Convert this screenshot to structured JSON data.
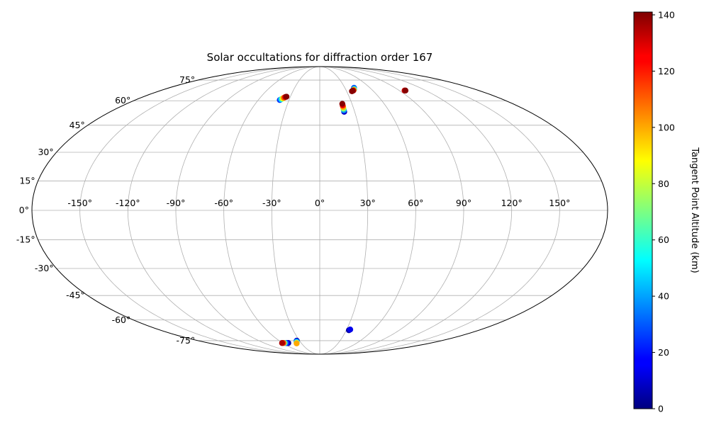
{
  "chart_data": {
    "type": "scatter",
    "projection": "mollweide",
    "title": "Solar occultations for diffraction order 167",
    "lon_ticks": [
      -150,
      -120,
      -90,
      -60,
      -30,
      0,
      30,
      60,
      90,
      120,
      150
    ],
    "lat_ticks": [
      -75,
      -60,
      -45,
      -30,
      -15,
      0,
      15,
      30,
      45,
      60,
      75
    ],
    "lon_tick_labels": [
      "-150°",
      "-120°",
      "-90°",
      "-60°",
      "-30°",
      "0°",
      "30°",
      "60°",
      "90°",
      "120°",
      "150°"
    ],
    "lat_tick_labels": [
      "-75°",
      "-60°",
      "-45°",
      "-30°",
      "-15°",
      "0°",
      "15°",
      "30°",
      "45°",
      "60°",
      "75°"
    ],
    "grid": true,
    "colormap": "jet",
    "colorbar": {
      "label": "Tangent Point Altitude (km)",
      "min": 0,
      "max": 141,
      "ticks": [
        0,
        20,
        40,
        60,
        80,
        100,
        120,
        140
      ],
      "tick_labels": [
        "0",
        "20",
        "40",
        "60",
        "80",
        "100",
        "120",
        "140"
      ],
      "placement": "right"
    },
    "points": [
      {
        "lon": -39,
        "lat": 60.5,
        "alt": 25
      },
      {
        "lon": -38,
        "lat": 61,
        "alt": 50
      },
      {
        "lon": -37,
        "lat": 61.5,
        "alt": 85
      },
      {
        "lon": -36,
        "lat": 62,
        "alt": 110
      },
      {
        "lon": -35,
        "lat": 62.5,
        "alt": 130
      },
      {
        "lon": -34,
        "lat": 62.7,
        "alt": 140
      },
      {
        "lon": 21,
        "lat": 53,
        "alt": 10
      },
      {
        "lon": 21,
        "lat": 54,
        "alt": 40
      },
      {
        "lon": 21,
        "lat": 55,
        "alt": 75
      },
      {
        "lon": 21,
        "lat": 56,
        "alt": 100
      },
      {
        "lon": 21,
        "lat": 57,
        "alt": 125
      },
      {
        "lon": 21,
        "lat": 58,
        "alt": 140
      },
      {
        "lon": 41,
        "lat": 69,
        "alt": 30
      },
      {
        "lon": 40,
        "lat": 68,
        "alt": 60
      },
      {
        "lon": 39,
        "lat": 67.5,
        "alt": 100
      },
      {
        "lon": 38,
        "lat": 67,
        "alt": 130
      },
      {
        "lon": 37,
        "lat": 66.8,
        "alt": 140
      },
      {
        "lon": 36,
        "lat": 66.5,
        "alt": 140
      },
      {
        "lon": 96,
        "lat": 67,
        "alt": 130
      },
      {
        "lon": 97,
        "lat": 67,
        "alt": 140
      },
      {
        "lon": 33,
        "lat": -67,
        "alt": 5
      },
      {
        "lon": 34,
        "lat": -66.5,
        "alt": 15
      },
      {
        "lon": -51,
        "lat": -77,
        "alt": 5
      },
      {
        "lon": -53,
        "lat": -77,
        "alt": 15
      },
      {
        "lon": -55,
        "lat": -77,
        "alt": 30
      },
      {
        "lon": -57,
        "lat": -77,
        "alt": 70
      },
      {
        "lon": -59,
        "lat": -77,
        "alt": 115
      },
      {
        "lon": -61,
        "lat": -77,
        "alt": 135
      },
      {
        "lon": -34,
        "lat": -75,
        "alt": 5
      },
      {
        "lon": -35,
        "lat": -75.5,
        "alt": 25
      },
      {
        "lon": -36,
        "lat": -76.2,
        "alt": 50
      },
      {
        "lon": -37,
        "lat": -76.8,
        "alt": 75
      },
      {
        "lon": -38,
        "lat": -77.3,
        "alt": 100
      }
    ]
  }
}
